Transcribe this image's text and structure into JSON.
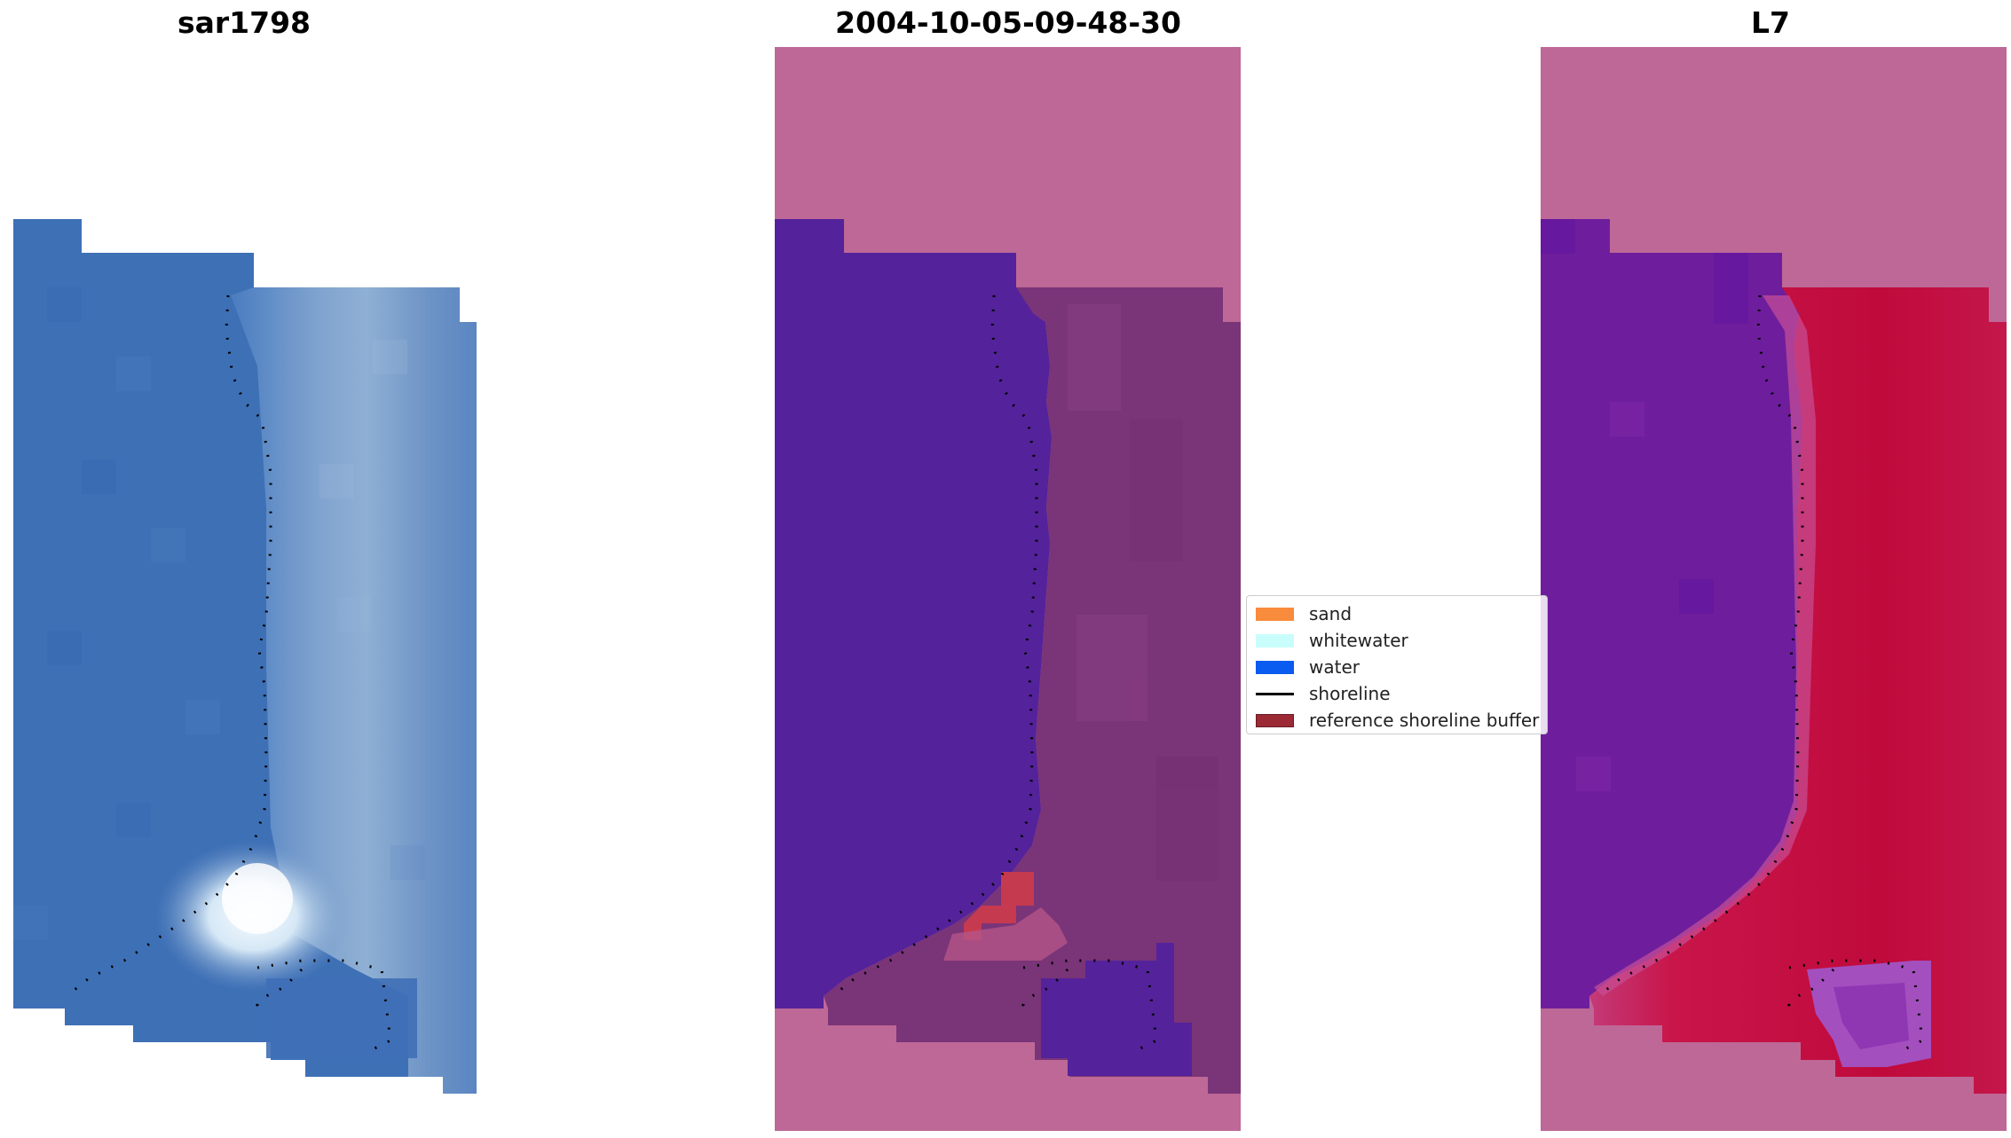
{
  "panels": [
    {
      "title": "sar1798"
    },
    {
      "title": "2004-10-05-09-48-30"
    },
    {
      "title": "L7"
    }
  ],
  "legend": {
    "items": [
      {
        "label": "sand",
        "color": "#f98b3c",
        "kind": "patch"
      },
      {
        "label": "whitewater",
        "color": "#c8fdfb",
        "kind": "patch"
      },
      {
        "label": "water",
        "color": "#0a5bf0",
        "kind": "patch"
      },
      {
        "label": "shoreline",
        "color": "#000000",
        "kind": "line"
      },
      {
        "label": "reference shoreline buffer",
        "color": "#9b2a35",
        "kind": "patch"
      }
    ]
  },
  "colors": {
    "rgb_water": "#3f71b8",
    "rgb_wave": "#6f95c6",
    "rgb_whitewater": "#e8f3fb",
    "class_background": "#be6897",
    "class_water": "#54229a",
    "class_land": "#7a3478",
    "class_whitewater": "#c63a4f",
    "mndwi_background": "#be6897",
    "mndwi_water": "#6e1e9d",
    "mndwi_land": "#c2103e",
    "shoreline": "#000000"
  }
}
